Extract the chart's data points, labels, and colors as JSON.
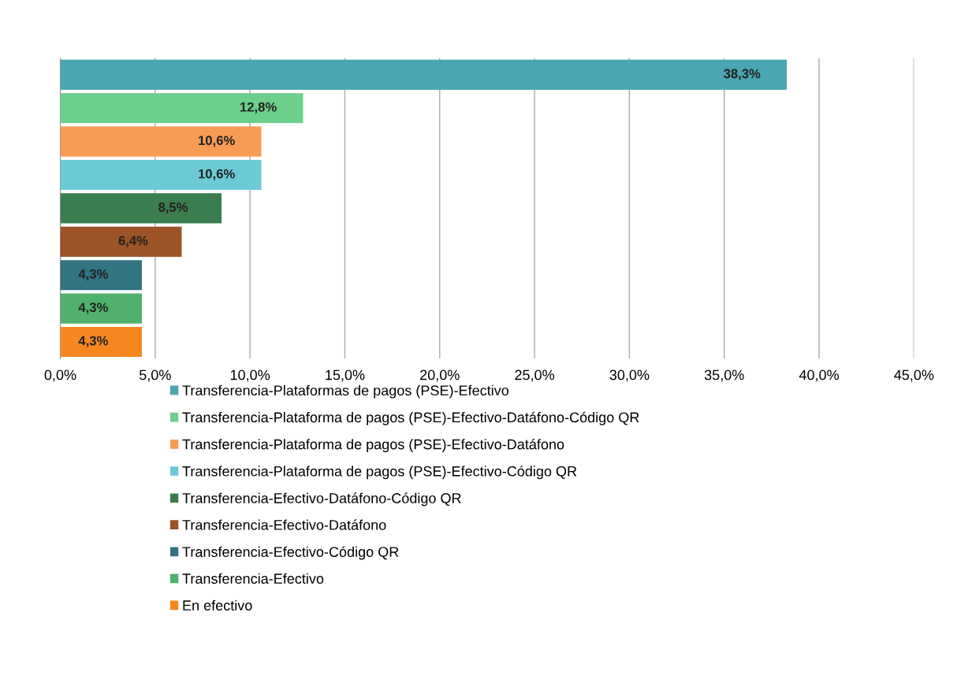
{
  "chart_data": {
    "type": "bar",
    "orientation": "horizontal",
    "categories": [
      null,
      null,
      null,
      null,
      null,
      null,
      null,
      null,
      null
    ],
    "series": [
      {
        "name": "Transferencia-Plataformas de pagos (PSE)-Efectivo",
        "color": "#4aa6b2",
        "values": [
          38.3,
          null,
          null,
          null,
          null,
          null,
          null,
          null,
          null
        ],
        "value_labels": [
          "38,3%",
          null,
          null,
          null,
          null,
          null,
          null,
          null,
          null
        ]
      },
      {
        "name": "Transferencia-Plataforma de pagos (PSE)-Efectivo-Datáfono-Código QR",
        "color": "#6ccf8c",
        "values": [
          null,
          12.8,
          null,
          null,
          null,
          null,
          null,
          null,
          null
        ],
        "value_labels": [
          null,
          "12,8%",
          null,
          null,
          null,
          null,
          null,
          null,
          null
        ]
      },
      {
        "name": "Transferencia-Plataforma de pagos (PSE)-Efectivo-Datáfono",
        "color": "#f89b55",
        "values": [
          null,
          null,
          10.6,
          null,
          null,
          null,
          null,
          null,
          null
        ],
        "value_labels": [
          null,
          null,
          "10,6%",
          null,
          null,
          null,
          null,
          null,
          null
        ]
      },
      {
        "name": "Transferencia-Plataforma de pagos (PSE)-Efectivo-Código QR",
        "color": "#6ccad6",
        "values": [
          null,
          null,
          null,
          10.6,
          null,
          null,
          null,
          null,
          null
        ],
        "value_labels": [
          null,
          null,
          null,
          "10,6%",
          null,
          null,
          null,
          null,
          null
        ]
      },
      {
        "name": "Transferencia-Efectivo-Datáfono-Código QR",
        "color": "#3b7c50",
        "values": [
          null,
          null,
          null,
          null,
          8.5,
          null,
          null,
          null,
          null
        ],
        "value_labels": [
          null,
          null,
          null,
          null,
          "8,5%",
          null,
          null,
          null,
          null
        ]
      },
      {
        "name": "Transferencia-Efectivo-Datáfono",
        "color": "#9b5327",
        "values": [
          null,
          null,
          null,
          null,
          null,
          6.4,
          null,
          null,
          null
        ],
        "value_labels": [
          null,
          null,
          null,
          null,
          null,
          "6,4%",
          null,
          null,
          null
        ]
      },
      {
        "name": "Transferencia-Efectivo-Código QR",
        "color": "#327482",
        "values": [
          null,
          null,
          null,
          null,
          null,
          null,
          4.3,
          null,
          null
        ],
        "value_labels": [
          null,
          null,
          null,
          null,
          null,
          null,
          "4,3%",
          null,
          null
        ]
      },
      {
        "name": "Transferencia-Efectivo",
        "color": "#4fb16d",
        "values": [
          null,
          null,
          null,
          null,
          null,
          null,
          null,
          4.3,
          null
        ],
        "value_labels": [
          null,
          null,
          null,
          null,
          null,
          null,
          null,
          "4,3%",
          null
        ]
      },
      {
        "name": "En efectivo",
        "color": "#f6871f",
        "values": [
          null,
          null,
          null,
          null,
          null,
          null,
          null,
          null,
          4.3
        ],
        "value_labels": [
          null,
          null,
          null,
          null,
          null,
          null,
          null,
          null,
          "4,3%"
        ]
      }
    ],
    "xlim": [
      0,
      45
    ],
    "xticks": [
      {
        "value": 0,
        "label": "0,0%"
      },
      {
        "value": 5,
        "label": "5,0%"
      },
      {
        "value": 10,
        "label": "10,0%"
      },
      {
        "value": 15,
        "label": "15,0%"
      },
      {
        "value": 20,
        "label": "20,0%"
      },
      {
        "value": 25,
        "label": "25,0%"
      },
      {
        "value": 30,
        "label": "30,0%"
      },
      {
        "value": 35,
        "label": "35,0%"
      },
      {
        "value": 40,
        "label": "40,0%"
      },
      {
        "value": 45,
        "label": "45,0%"
      }
    ],
    "grid": "x",
    "legend": "bottom"
  }
}
